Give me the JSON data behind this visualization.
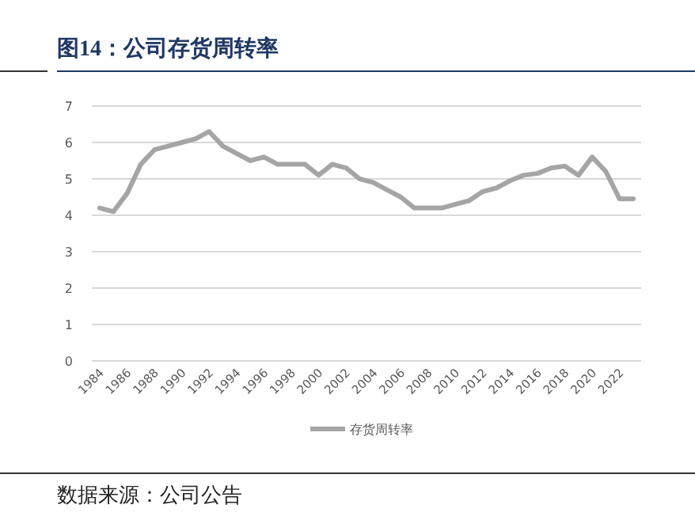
{
  "chart_data": {
    "type": "line",
    "title": "图14：公司存货周转率",
    "categories": [
      "1984",
      null,
      "1986",
      null,
      "1988",
      null,
      "1990",
      null,
      "1992",
      null,
      "1994",
      null,
      "1996",
      null,
      "1998",
      null,
      "2000",
      null,
      "2002",
      null,
      "2004",
      null,
      "2006",
      null,
      "2008",
      null,
      "2010",
      null,
      "2012",
      null,
      "2014",
      null,
      "2016",
      null,
      "2018",
      null,
      "2020",
      null,
      "2022",
      null
    ],
    "series": [
      {
        "name": "存货周转率",
        "color": "#a5a5a5",
        "values": [
          4.2,
          4.1,
          4.6,
          5.4,
          5.8,
          5.9,
          6.0,
          6.1,
          6.3,
          5.9,
          5.7,
          5.5,
          5.6,
          5.4,
          5.4,
          5.4,
          5.1,
          5.4,
          5.3,
          5.0,
          4.9,
          4.7,
          4.5,
          4.2,
          4.2,
          4.2,
          4.3,
          4.4,
          4.65,
          4.75,
          4.95,
          5.1,
          5.15,
          5.3,
          5.35,
          5.1,
          5.6,
          5.2,
          4.45,
          4.45
        ]
      }
    ],
    "ylim": [
      0,
      7
    ],
    "yticks": [
      0,
      1,
      2,
      3,
      4,
      5,
      6,
      7
    ],
    "grid": "y",
    "legend": "bottom",
    "marker": "none",
    "line_style": "solid",
    "annotations": [
      "数据来源：公司公告"
    ]
  }
}
